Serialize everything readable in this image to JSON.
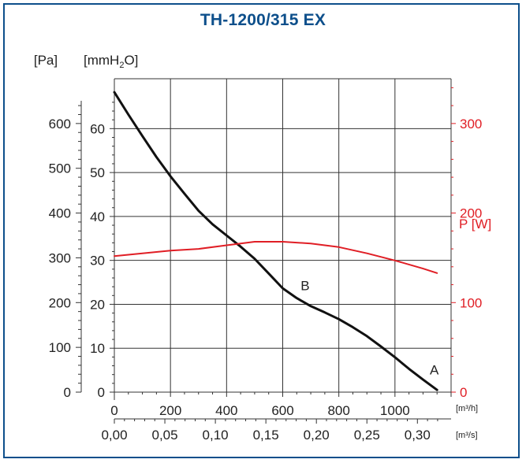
{
  "title": "TH-1200/315 EX",
  "chart_data": {
    "type": "line",
    "title": "TH-1200/315 EX",
    "y_left_outer_label": "[Pa]",
    "y_left_inner_label": "[mmH2O]",
    "y_right_label": "P [W]",
    "x_unit_top": "[m³/h]",
    "x_unit_bottom": "[m³/s]",
    "x_top_ticks": [
      "0",
      "200",
      "400",
      "600",
      "800",
      "1000"
    ],
    "x_bottom_ticks": [
      "0,00",
      "0,05",
      "0,10",
      "0,15",
      "0,20",
      "0,25",
      "0,30"
    ],
    "y_pa_ticks": [
      "0",
      "100",
      "200",
      "300",
      "400",
      "500",
      "600"
    ],
    "y_mm_ticks": [
      "0",
      "10",
      "20",
      "30",
      "40",
      "50",
      "60"
    ],
    "y_w_ticks": [
      "0",
      "100",
      "200",
      "300"
    ],
    "xlim": [
      0,
      1200
    ],
    "ylim_pa": [
      0,
      700
    ],
    "ylim_w": [
      0,
      300
    ],
    "grid": true,
    "series": [
      {
        "name": "",
        "axis": "pa",
        "color": "#111111",
        "x": [
          0,
          50,
          100,
          150,
          200,
          250,
          300,
          350,
          400,
          450,
          500,
          550,
          600,
          650,
          700,
          750,
          800,
          850,
          900,
          950,
          1000,
          1050,
          1100,
          1150
        ],
        "y": [
          670,
          620,
          572,
          525,
          482,
          443,
          405,
          375,
          350,
          325,
          298,
          265,
          232,
          210,
          192,
          178,
          163,
          145,
          125,
          102,
          78,
          52,
          28,
          5
        ]
      },
      {
        "name": "",
        "axis": "w",
        "color": "#e01e25",
        "x": [
          0,
          100,
          200,
          300,
          400,
          500,
          600,
          700,
          800,
          900,
          1000,
          1100,
          1150
        ],
        "y": [
          152,
          155,
          158,
          160,
          164,
          168,
          168,
          166,
          162,
          155,
          147,
          138,
          133
        ]
      }
    ],
    "annotations": [
      {
        "text": "A",
        "x": 1140,
        "y": 40
      },
      {
        "text": "B",
        "x": 680,
        "y": 228
      }
    ]
  }
}
